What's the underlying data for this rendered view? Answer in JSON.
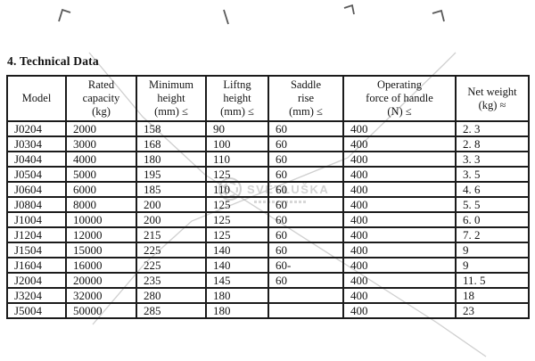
{
  "page": {
    "title": "4. Technical Data"
  },
  "table": {
    "columns": [
      {
        "id": "model",
        "header_lines": [
          "Model"
        ]
      },
      {
        "id": "rated-capacity",
        "header_lines": [
          "Rated",
          "capacity",
          "(kg)"
        ]
      },
      {
        "id": "minimum-height",
        "header_lines": [
          "Minimum",
          "height",
          "(mm) ≤"
        ]
      },
      {
        "id": "lifting-height",
        "header_lines": [
          "Liftng",
          "height",
          "(mm) ≤"
        ]
      },
      {
        "id": "saddle-rise",
        "header_lines": [
          "Saddle",
          "rise",
          "(mm) ≤"
        ]
      },
      {
        "id": "operating-force",
        "header_lines": [
          "Operating",
          "force of handle",
          "(N) ≤"
        ]
      },
      {
        "id": "net-weight",
        "header_lines": [
          "Net weight",
          "(kg) ≈"
        ]
      }
    ],
    "rows": [
      [
        "J0204",
        "2000",
        "158",
        "90",
        "60",
        "400",
        "2. 3"
      ],
      [
        "J0304",
        "3000",
        "168",
        "100",
        "60",
        "400",
        "2. 8"
      ],
      [
        "J0404",
        "4000",
        "180",
        "110",
        "60",
        "400",
        "3. 3"
      ],
      [
        "J0504",
        "5000",
        "195",
        "125",
        "60",
        "400",
        "3. 5"
      ],
      [
        "J0604",
        "6000",
        "185",
        "110",
        "60",
        "400",
        "4. 6"
      ],
      [
        "J0804",
        "8000",
        "200",
        "125",
        "60",
        "400",
        "5. 5"
      ],
      [
        "J1004",
        "10000",
        "200",
        "125",
        "60",
        "400",
        "6. 0"
      ],
      [
        "J1204",
        "12000",
        "215",
        "125",
        "60",
        "400",
        "7. 2"
      ],
      [
        "J1504",
        "15000",
        "225",
        "140",
        "60",
        "400",
        "9"
      ],
      [
        "J1604",
        "16000",
        "225",
        "140",
        "60-",
        "400",
        "9"
      ],
      [
        "J2004",
        "20000",
        "235",
        "145",
        "60",
        "400",
        "11. 5"
      ],
      [
        "J3204",
        "32000",
        "280",
        "180",
        "",
        "400",
        "18"
      ],
      [
        "J5004",
        "50000",
        "285",
        "180",
        "",
        "400",
        "23"
      ]
    ]
  },
  "watermark": {
    "text": "SVĚTLUŠKA"
  },
  "colors": {
    "paper": "#ffffff",
    "ink": "#141414",
    "table_border": "#1b1b1b",
    "watermark_grey": "#c6c6c6",
    "crease_grey": "#a8a8a8"
  }
}
